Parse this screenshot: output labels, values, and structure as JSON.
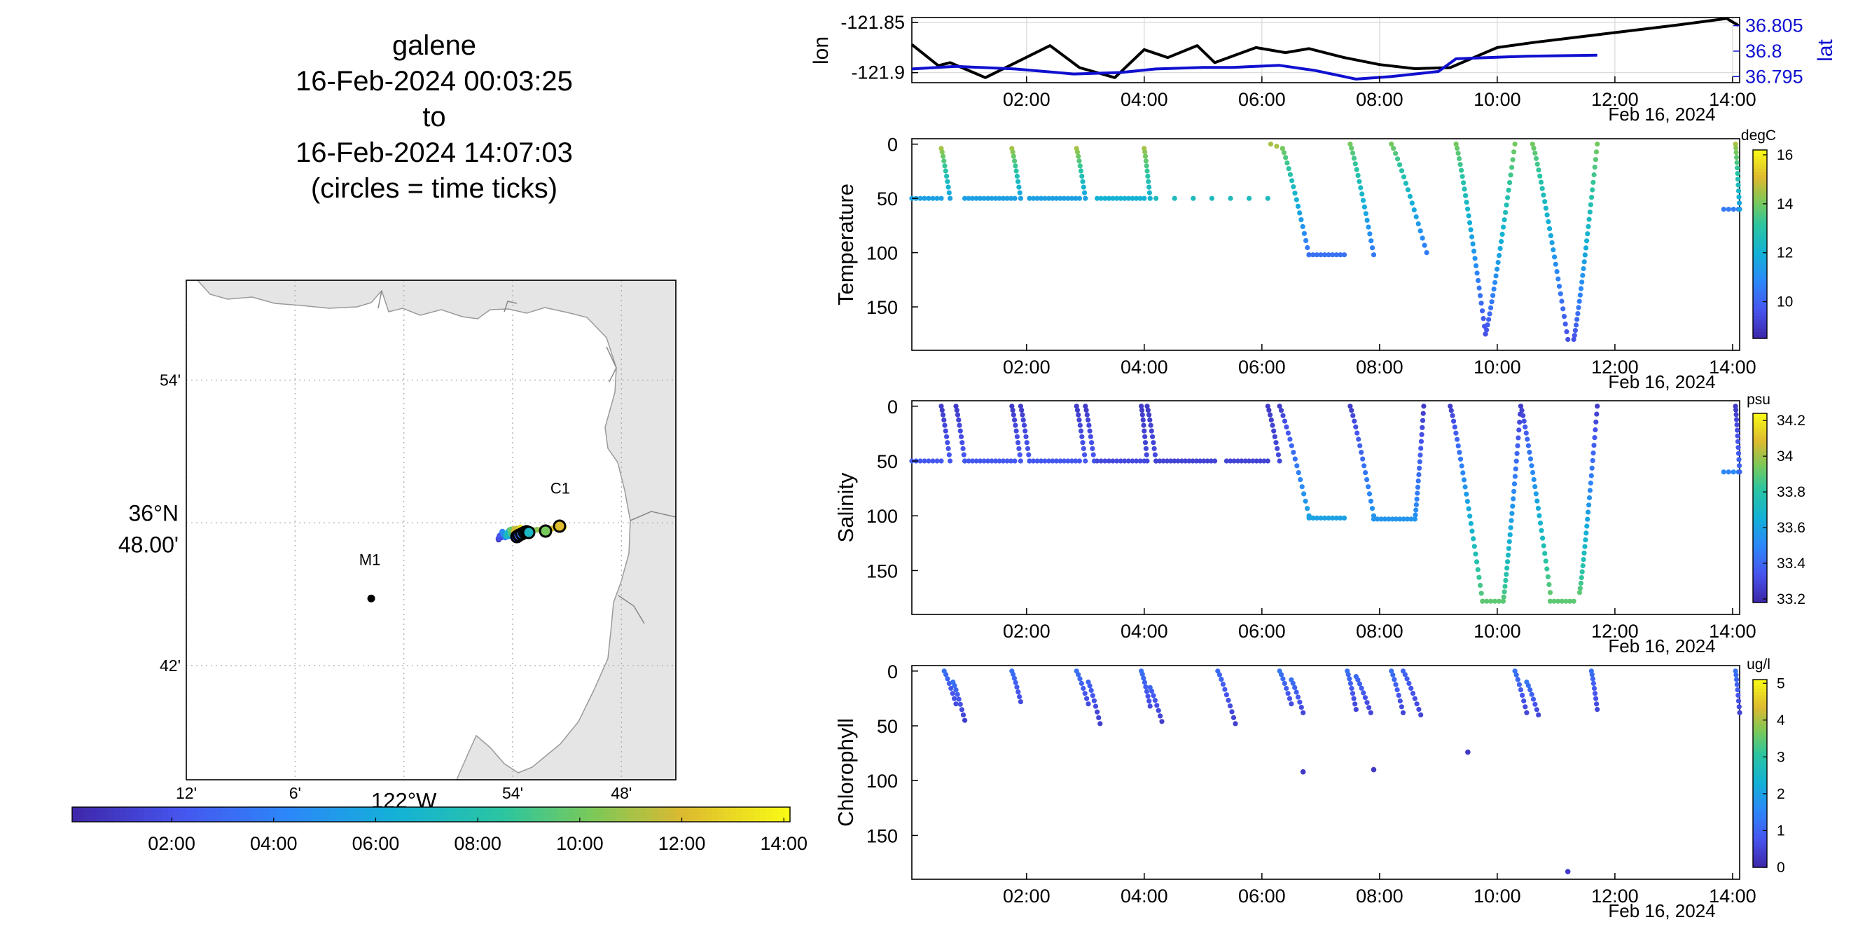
{
  "title": {
    "lines": [
      "galene",
      "16-Feb-2024 00:03:25",
      "to",
      "16-Feb-2024 14:07:03",
      "(circles = time ticks)"
    ]
  },
  "colors": {
    "lon_line": "#000000",
    "lat_line": "#1010d0",
    "land": "#e5e5e5",
    "coast": "#9a9a9a",
    "grid": "#b0b0b0"
  },
  "time_axis": {
    "range_hours": [
      0.05,
      14.12
    ],
    "tick_hours": [
      2,
      4,
      6,
      8,
      10,
      12,
      14
    ],
    "tick_labels": [
      "02:00",
      "04:00",
      "06:00",
      "08:00",
      "10:00",
      "12:00",
      "14:00"
    ],
    "date_label": "Feb 16, 2024"
  },
  "map": {
    "lon_ticks": [
      -122.2,
      -122.1,
      -122.0,
      -121.9,
      -121.8
    ],
    "lon_tick_labels": [
      "12'",
      "6'",
      "122°W",
      "54'",
      "48'"
    ],
    "lat_ticks": [
      36.9,
      36.8,
      36.7
    ],
    "lat_tick_labels": [
      "54'",
      "36°N 48.00'",
      "42'"
    ],
    "lon_range": [
      -122.2,
      -121.75
    ],
    "lat_range": [
      36.62,
      36.97
    ],
    "stations": [
      {
        "label": "M1",
        "lon": -122.03,
        "lat": 36.747
      },
      {
        "label": "C1",
        "lon": -121.855,
        "lat": 36.797
      }
    ],
    "colorbar_range_hours": [
      0.05,
      14.12
    ]
  },
  "chart_data": [
    {
      "type": "line",
      "id": "lon-lat",
      "ylabel": "lon",
      "ylabel_right": "lat",
      "y_ticks": [
        -121.85,
        -121.9
      ],
      "y_tick_labels": [
        "-121.85",
        "-121.9"
      ],
      "ylim": [
        -121.91,
        -121.845
      ],
      "y2_ticks": [
        36.805,
        36.8,
        36.795
      ],
      "y2_tick_labels": [
        "36.805",
        "36.8",
        "36.795"
      ],
      "y2lim": [
        36.7938,
        36.8066
      ],
      "series": [
        {
          "name": "lon",
          "axis": "left",
          "x": [
            0.05,
            0.5,
            0.7,
            1.3,
            2.4,
            2.9,
            3.5,
            4.0,
            4.4,
            4.9,
            5.2,
            5.9,
            6.4,
            6.8,
            7.4,
            8.0,
            8.6,
            9.2,
            10.0,
            10.6,
            12.0,
            13.0,
            13.9,
            14.1
          ],
          "y": [
            -121.872,
            -121.893,
            -121.89,
            -121.905,
            -121.873,
            -121.895,
            -121.905,
            -121.877,
            -121.885,
            -121.873,
            -121.89,
            -121.875,
            -121.88,
            -121.876,
            -121.885,
            -121.892,
            -121.896,
            -121.895,
            -121.875,
            -121.87,
            -121.86,
            -121.853,
            -121.846,
            -121.853
          ]
        },
        {
          "name": "lat",
          "axis": "right",
          "x": [
            0.05,
            0.8,
            1.8,
            2.8,
            3.6,
            4.2,
            5.0,
            5.5,
            6.3,
            6.9,
            7.6,
            8.2,
            9.0,
            9.3,
            10.5,
            11.7
          ],
          "y": [
            36.7965,
            36.797,
            36.7965,
            36.7955,
            36.7958,
            36.7965,
            36.7968,
            36.7968,
            36.7972,
            36.7962,
            36.7945,
            36.795,
            36.796,
            36.7985,
            36.799,
            36.7992
          ]
        }
      ]
    },
    {
      "type": "scatter",
      "id": "temperature",
      "ylabel": "Temperature",
      "y_ticks": [
        0,
        50,
        100,
        150
      ],
      "y_tick_labels": [
        "0",
        "50",
        "100",
        "150"
      ],
      "ylim": [
        190,
        -5
      ],
      "colorbar": {
        "unit": "degC",
        "range": [
          8.5,
          16.2
        ],
        "ticks": [
          10,
          12,
          14,
          16
        ],
        "tick_labels": [
          "10",
          "12",
          "14",
          "16"
        ]
      },
      "casts": [
        {
          "t0": 0.05,
          "t1": 0.55,
          "top": 50,
          "bottom": 50,
          "type": "flat",
          "ct": 11.5,
          "cb": 11.5
        },
        {
          "t0": 0.55,
          "t1": 0.7,
          "top": 4,
          "bottom": 50,
          "type": "profile",
          "ct": 14.5,
          "cb": 11.5
        },
        {
          "t0": 0.95,
          "t1": 1.8,
          "top": 50,
          "bottom": 50,
          "type": "flat",
          "ct": 11.5,
          "cb": 11.5
        },
        {
          "t0": 1.75,
          "t1": 1.9,
          "top": 4,
          "bottom": 50,
          "type": "profile",
          "ct": 14.5,
          "cb": 11.5
        },
        {
          "t0": 2.05,
          "t1": 2.9,
          "top": 50,
          "bottom": 50,
          "type": "flat",
          "ct": 11.5,
          "cb": 11.5
        },
        {
          "t0": 2.85,
          "t1": 3.0,
          "top": 4,
          "bottom": 50,
          "type": "profile",
          "ct": 14.5,
          "cb": 11.5
        },
        {
          "t0": 3.2,
          "t1": 4.0,
          "top": 50,
          "bottom": 50,
          "type": "flat",
          "ct": 12.0,
          "cb": 12.0
        },
        {
          "t0": 4.0,
          "t1": 4.1,
          "top": 4,
          "bottom": 50,
          "type": "profile",
          "ct": 14.5,
          "cb": 12.0
        },
        {
          "t0": 4.2,
          "t1": 6.1,
          "top": 50,
          "bottom": 50,
          "type": "sparse",
          "ct": 12.5,
          "cb": 12.5
        },
        {
          "t0": 6.15,
          "t1": 6.35,
          "top": 0,
          "bottom": 4,
          "type": "flat",
          "ct": 14.5,
          "cb": 14.5
        },
        {
          "t0": 6.35,
          "t1": 6.8,
          "top": 4,
          "bottom": 102,
          "type": "profile",
          "ct": 14.0,
          "cb": 10.3
        },
        {
          "t0": 6.8,
          "t1": 7.4,
          "top": 102,
          "bottom": 102,
          "type": "flat",
          "ct": 10.3,
          "cb": 10.3
        },
        {
          "t0": 7.5,
          "t1": 7.9,
          "top": 0,
          "bottom": 102,
          "type": "profile",
          "ct": 14.0,
          "cb": 10.5
        },
        {
          "t0": 8.2,
          "t1": 8.8,
          "top": 0,
          "bottom": 100,
          "type": "profile",
          "ct": 14.0,
          "cb": 10.5
        },
        {
          "t0": 9.3,
          "t1": 9.8,
          "top": 0,
          "bottom": 175,
          "type": "profile",
          "ct": 14.0,
          "cb": 9.5
        },
        {
          "t0": 9.8,
          "t1": 10.3,
          "top": 175,
          "bottom": 0,
          "type": "profile",
          "ct": 9.5,
          "cb": 14.0
        },
        {
          "t0": 10.6,
          "t1": 11.2,
          "top": 0,
          "bottom": 180,
          "type": "profile",
          "ct": 14.0,
          "cb": 9.5
        },
        {
          "t0": 11.3,
          "t1": 11.7,
          "top": 180,
          "bottom": 0,
          "type": "profile",
          "ct": 9.5,
          "cb": 14.0
        },
        {
          "t0": 13.85,
          "t1": 14.1,
          "top": 60,
          "bottom": 60,
          "type": "flat",
          "ct": 10.5,
          "cb": 10.5
        },
        {
          "t0": 14.05,
          "t1": 14.12,
          "top": 0,
          "bottom": 60,
          "type": "profile",
          "ct": 14.5,
          "cb": 11.5
        }
      ]
    },
    {
      "type": "scatter",
      "id": "salinity",
      "ylabel": "Salinity",
      "y_ticks": [
        0,
        50,
        100,
        150
      ],
      "y_tick_labels": [
        "0",
        "50",
        "100",
        "150"
      ],
      "ylim": [
        190,
        -5
      ],
      "colorbar": {
        "unit": "psu",
        "range": [
          33.18,
          34.24
        ],
        "ticks": [
          33.2,
          33.4,
          33.6,
          33.8,
          34,
          34.2
        ],
        "tick_labels": [
          "33.2",
          "33.4",
          "33.6",
          "33.8",
          "34",
          "34.2"
        ]
      },
      "casts": [
        {
          "t0": 0.05,
          "t1": 0.55,
          "top": 50,
          "bottom": 50,
          "type": "flat",
          "ct": 33.35,
          "cb": 33.35
        },
        {
          "t0": 0.55,
          "t1": 0.7,
          "top": 0,
          "bottom": 50,
          "type": "profile",
          "ct": 33.25,
          "cb": 33.35
        },
        {
          "t0": 0.8,
          "t1": 0.95,
          "top": 0,
          "bottom": 50,
          "type": "profile",
          "ct": 33.25,
          "cb": 33.35
        },
        {
          "t0": 0.95,
          "t1": 1.8,
          "top": 50,
          "bottom": 50,
          "type": "flat",
          "ct": 33.35,
          "cb": 33.35
        },
        {
          "t0": 1.75,
          "t1": 1.9,
          "top": 0,
          "bottom": 50,
          "type": "profile",
          "ct": 33.25,
          "cb": 33.35
        },
        {
          "t0": 1.9,
          "t1": 2.05,
          "top": 0,
          "bottom": 50,
          "type": "profile",
          "ct": 33.25,
          "cb": 33.35
        },
        {
          "t0": 2.05,
          "t1": 2.9,
          "top": 50,
          "bottom": 50,
          "type": "flat",
          "ct": 33.35,
          "cb": 33.35
        },
        {
          "t0": 2.85,
          "t1": 3.0,
          "top": 0,
          "bottom": 50,
          "type": "profile",
          "ct": 33.25,
          "cb": 33.35
        },
        {
          "t0": 3.0,
          "t1": 3.15,
          "top": 0,
          "bottom": 50,
          "type": "profile",
          "ct": 33.25,
          "cb": 33.35
        },
        {
          "t0": 3.2,
          "t1": 4.0,
          "top": 50,
          "bottom": 50,
          "type": "flat",
          "ct": 33.3,
          "cb": 33.3
        },
        {
          "t0": 3.95,
          "t1": 4.05,
          "top": 0,
          "bottom": 50,
          "type": "profile",
          "ct": 33.25,
          "cb": 33.3
        },
        {
          "t0": 4.05,
          "t1": 4.2,
          "top": 0,
          "bottom": 50,
          "type": "profile",
          "ct": 33.25,
          "cb": 33.3
        },
        {
          "t0": 4.2,
          "t1": 5.2,
          "top": 50,
          "bottom": 50,
          "type": "flat",
          "ct": 33.28,
          "cb": 33.28
        },
        {
          "t0": 5.4,
          "t1": 6.1,
          "top": 50,
          "bottom": 50,
          "type": "flat",
          "ct": 33.28,
          "cb": 33.28
        },
        {
          "t0": 6.1,
          "t1": 6.3,
          "top": 0,
          "bottom": 50,
          "type": "profile",
          "ct": 33.25,
          "cb": 33.3
        },
        {
          "t0": 6.3,
          "t1": 6.8,
          "top": 0,
          "bottom": 100,
          "type": "profile",
          "ct": 33.25,
          "cb": 33.6
        },
        {
          "t0": 6.8,
          "t1": 7.4,
          "top": 102,
          "bottom": 102,
          "type": "flat",
          "ct": 33.6,
          "cb": 33.6
        },
        {
          "t0": 7.5,
          "t1": 7.9,
          "top": 0,
          "bottom": 100,
          "type": "profile",
          "ct": 33.25,
          "cb": 33.55
        },
        {
          "t0": 7.9,
          "t1": 8.6,
          "top": 103,
          "bottom": 103,
          "type": "flat",
          "ct": 33.55,
          "cb": 33.55
        },
        {
          "t0": 8.6,
          "t1": 8.75,
          "top": 103,
          "bottom": 0,
          "type": "profile",
          "ct": 33.55,
          "cb": 33.25
        },
        {
          "t0": 9.2,
          "t1": 9.75,
          "top": 0,
          "bottom": 178,
          "type": "profile",
          "ct": 33.25,
          "cb": 33.9
        },
        {
          "t0": 9.75,
          "t1": 10.1,
          "top": 178,
          "bottom": 178,
          "type": "flat",
          "ct": 33.9,
          "cb": 33.9
        },
        {
          "t0": 10.1,
          "t1": 10.4,
          "top": 178,
          "bottom": 0,
          "type": "profile",
          "ct": 33.9,
          "cb": 33.25
        },
        {
          "t0": 10.4,
          "t1": 10.9,
          "top": 0,
          "bottom": 170,
          "type": "profile",
          "ct": 33.25,
          "cb": 33.9
        },
        {
          "t0": 10.9,
          "t1": 11.3,
          "top": 178,
          "bottom": 178,
          "type": "flat",
          "ct": 33.9,
          "cb": 33.9
        },
        {
          "t0": 11.4,
          "t1": 11.7,
          "top": 170,
          "bottom": 0,
          "type": "profile",
          "ct": 33.9,
          "cb": 33.25
        },
        {
          "t0": 13.85,
          "t1": 14.1,
          "top": 60,
          "bottom": 60,
          "type": "flat",
          "ct": 33.5,
          "cb": 33.5
        },
        {
          "t0": 14.05,
          "t1": 14.12,
          "top": 0,
          "bottom": 60,
          "type": "profile",
          "ct": 33.25,
          "cb": 33.4
        }
      ]
    },
    {
      "type": "scatter",
      "id": "chlorophyll",
      "ylabel": "Chlorophyll",
      "y_ticks": [
        0,
        50,
        100,
        150
      ],
      "y_tick_labels": [
        "0",
        "50",
        "100",
        "150"
      ],
      "ylim": [
        190,
        -5
      ],
      "colorbar": {
        "unit": "ug/l",
        "range": [
          0,
          5.1
        ],
        "ticks": [
          0,
          1,
          2,
          3,
          4,
          5
        ],
        "tick_labels": [
          "0",
          "1",
          "2",
          "3",
          "4",
          "5"
        ]
      },
      "casts": [
        {
          "t0": 0.6,
          "t1": 0.8,
          "top": 0,
          "bottom": 30,
          "type": "profile",
          "ct": 1.2,
          "cb": 0.6
        },
        {
          "t0": 0.75,
          "t1": 0.95,
          "top": 10,
          "bottom": 45,
          "type": "profile",
          "ct": 1.2,
          "cb": 0.4
        },
        {
          "t0": 1.75,
          "t1": 1.9,
          "top": 0,
          "bottom": 28,
          "type": "profile",
          "ct": 1.2,
          "cb": 0.6
        },
        {
          "t0": 2.85,
          "t1": 3.05,
          "top": 0,
          "bottom": 30,
          "type": "profile",
          "ct": 1.2,
          "cb": 0.6
        },
        {
          "t0": 3.05,
          "t1": 3.25,
          "top": 10,
          "bottom": 48,
          "type": "profile",
          "ct": 1.0,
          "cb": 0.4
        },
        {
          "t0": 3.95,
          "t1": 4.1,
          "top": 0,
          "bottom": 32,
          "type": "profile",
          "ct": 1.2,
          "cb": 0.6
        },
        {
          "t0": 4.1,
          "t1": 4.3,
          "top": 15,
          "bottom": 46,
          "type": "profile",
          "ct": 1.0,
          "cb": 0.4
        },
        {
          "t0": 5.25,
          "t1": 5.55,
          "top": 0,
          "bottom": 48,
          "type": "profile",
          "ct": 1.1,
          "cb": 0.4
        },
        {
          "t0": 6.3,
          "t1": 6.5,
          "top": 0,
          "bottom": 30,
          "type": "profile",
          "ct": 1.3,
          "cb": 0.6
        },
        {
          "t0": 6.5,
          "t1": 6.7,
          "top": 8,
          "bottom": 38,
          "type": "profile",
          "ct": 1.2,
          "cb": 0.5
        },
        {
          "t0": 7.45,
          "t1": 7.6,
          "top": 0,
          "bottom": 35,
          "type": "profile",
          "ct": 1.2,
          "cb": 0.5
        },
        {
          "t0": 7.6,
          "t1": 7.85,
          "top": 5,
          "bottom": 38,
          "type": "profile",
          "ct": 1.1,
          "cb": 0.5
        },
        {
          "t0": 8.2,
          "t1": 8.4,
          "top": 0,
          "bottom": 38,
          "type": "profile",
          "ct": 1.2,
          "cb": 0.5
        },
        {
          "t0": 8.4,
          "t1": 8.7,
          "top": 0,
          "bottom": 40,
          "type": "profile",
          "ct": 1.0,
          "cb": 0.5
        },
        {
          "t0": 10.3,
          "t1": 10.5,
          "top": 0,
          "bottom": 38,
          "type": "profile",
          "ct": 1.2,
          "cb": 0.5
        },
        {
          "t0": 10.5,
          "t1": 10.7,
          "top": 10,
          "bottom": 40,
          "type": "profile",
          "ct": 1.3,
          "cb": 0.5
        },
        {
          "t0": 11.6,
          "t1": 11.7,
          "top": 0,
          "bottom": 35,
          "type": "profile",
          "ct": 1.2,
          "cb": 0.5
        },
        {
          "t0": 14.05,
          "t1": 14.12,
          "top": 0,
          "bottom": 38,
          "type": "profile",
          "ct": 1.2,
          "cb": 0.5
        }
      ],
      "points": [
        {
          "t": 6.7,
          "depth": 92,
          "c": 0.3
        },
        {
          "t": 7.9,
          "depth": 90,
          "c": 0.3
        },
        {
          "t": 9.5,
          "depth": 74,
          "c": 0.3
        },
        {
          "t": 11.2,
          "depth": 183,
          "c": 0.3
        }
      ]
    }
  ]
}
